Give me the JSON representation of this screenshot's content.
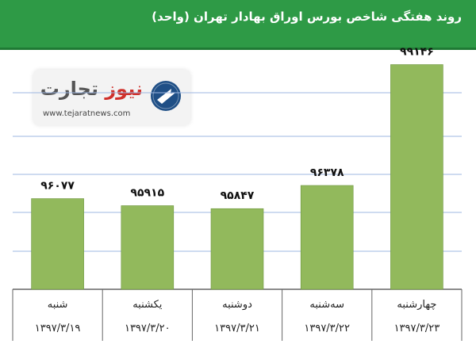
{
  "header": {
    "title": "روند هفتگی شاخص بورس اوراق بهادار تهران (واحد)"
  },
  "logo": {
    "brand_main": "تجارت",
    "brand_accent": "نیوز",
    "domain": "www.tejaratnews.com"
  },
  "colors": {
    "header": "#2e9a46",
    "bar": "#92b95c",
    "grid": "#9db7e2",
    "axis": "#666666"
  },
  "chart_data": {
    "type": "bar",
    "title": "روند هفتگی شاخص بورس اوراق بهادار تهران (واحد)",
    "categories": [
      "شنبه",
      "یکشنبه",
      "دوشنبه",
      "سه‌شنبه",
      "چهارشنبه"
    ],
    "dates": [
      "۱۳۹۷/۳/۱۹",
      "۱۳۹۷/۳/۲۰",
      "۱۳۹۷/۳/۲۱",
      "۱۳۹۷/۳/۲۲",
      "۱۳۹۷/۳/۲۳"
    ],
    "values": [
      96077,
      95915,
      95847,
      96378,
      99146
    ],
    "value_labels": [
      "۹۶۰۷۷",
      "۹۵۹۱۵",
      "۹۵۸۴۷",
      "۹۶۳۷۸",
      "۹۹۱۴۶"
    ],
    "ylim": [
      94000,
      99500
    ],
    "grid": true,
    "legend": "none"
  }
}
